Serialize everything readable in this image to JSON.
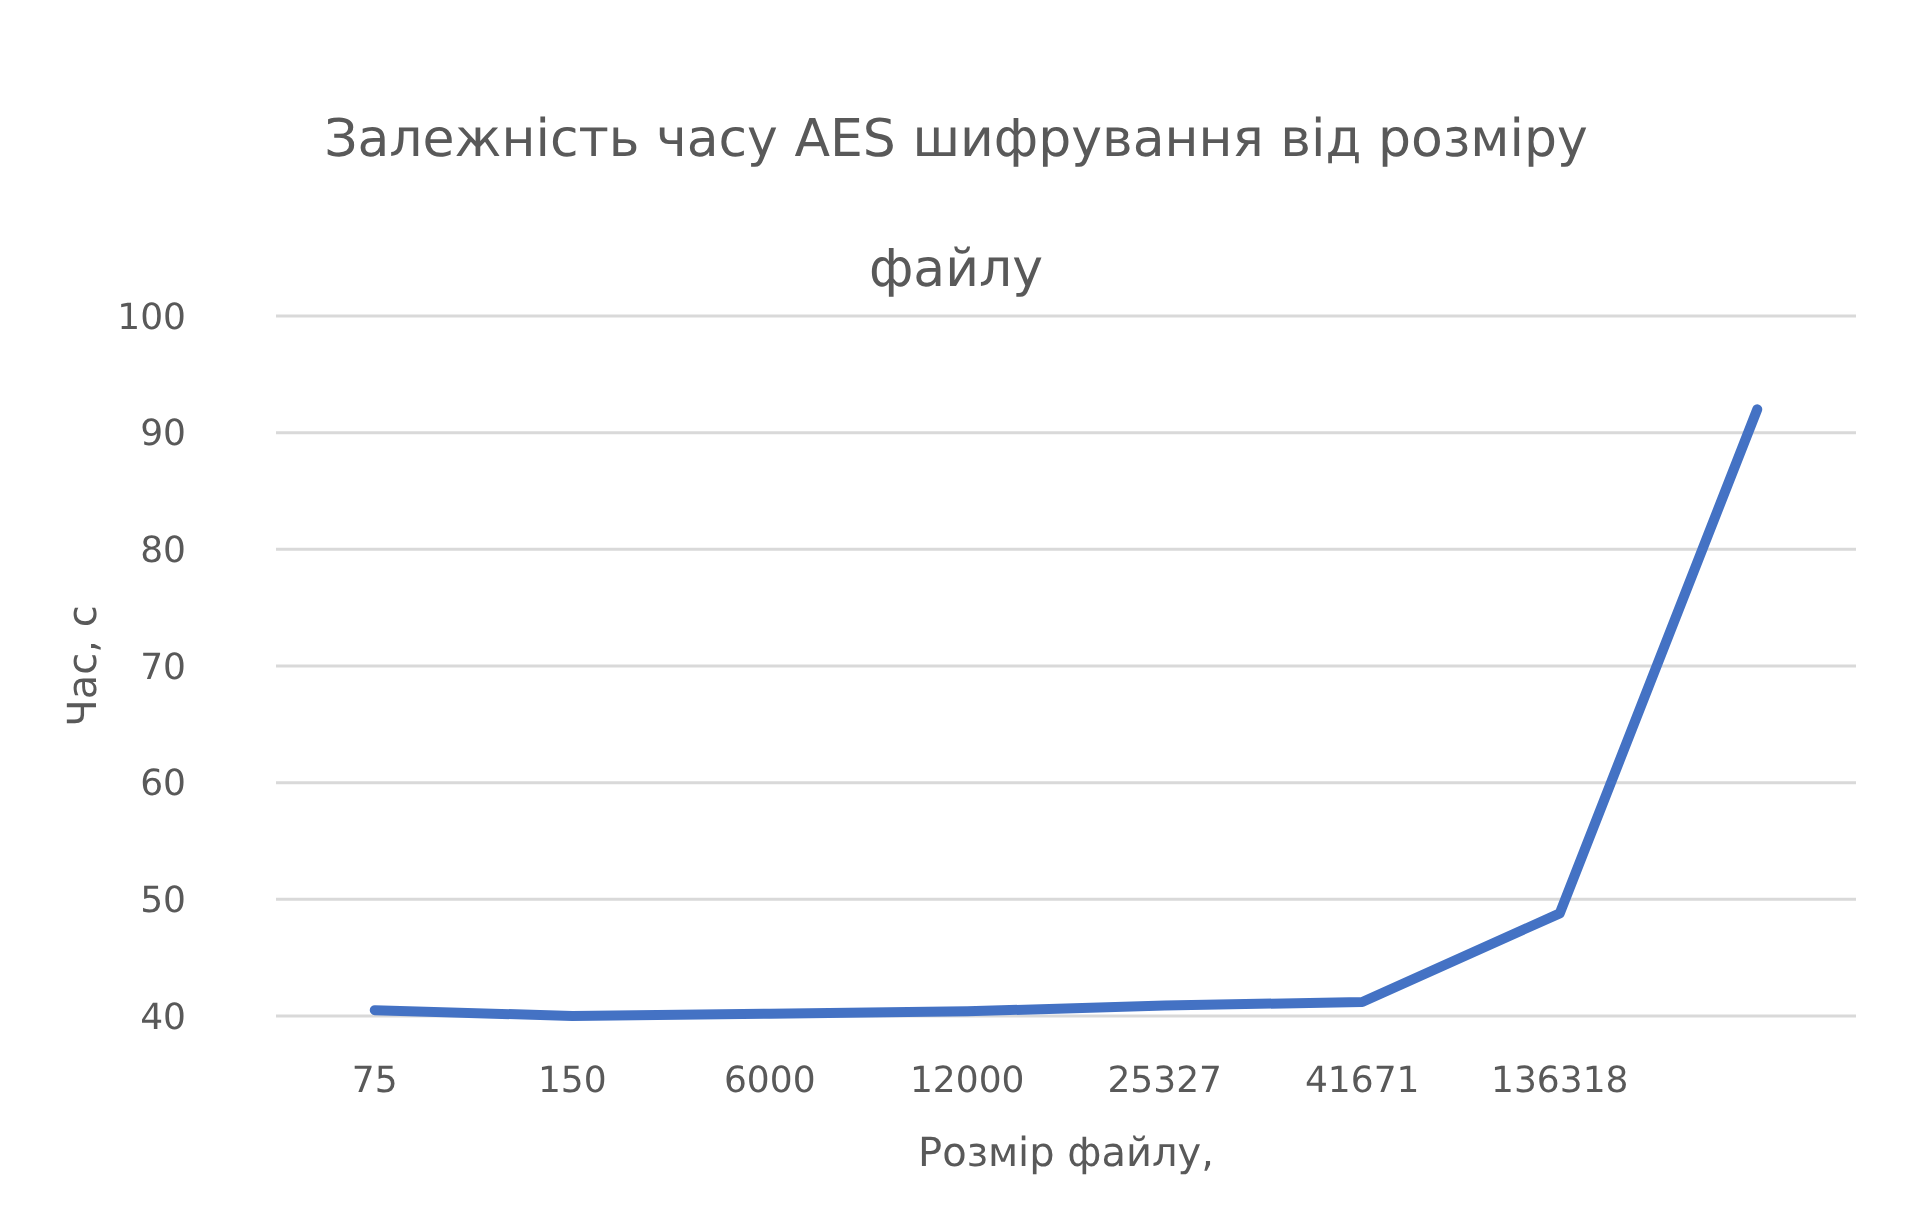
{
  "chart_data": {
    "type": "line",
    "title": "Залежність часу AES шифрування від розміру файлу",
    "xlabel": "Розмір файлу,",
    "ylabel": "Час, с",
    "categories": [
      "75",
      "150",
      "6000",
      "12000",
      "25327",
      "41671",
      "136318",
      null
    ],
    "series": [
      {
        "color": "#4472c4",
        "values": [
          40.5,
          40.0,
          40.2,
          40.4,
          40.9,
          41.2,
          48.8,
          92
        ]
      }
    ],
    "ylim": [
      40,
      100
    ],
    "yticks": [
      40,
      50,
      60,
      70,
      80,
      90,
      100
    ],
    "grid": "y",
    "marker": "none",
    "line_style": "solid"
  }
}
